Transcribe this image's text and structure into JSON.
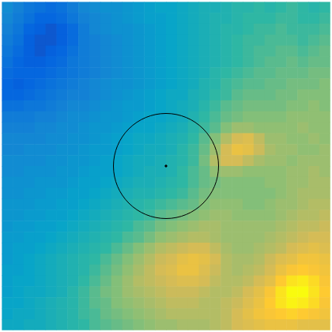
{
  "chart_data": {
    "type": "heatmap",
    "xlim": [
      0,
      30
    ],
    "ylim": [
      0,
      30
    ],
    "tick_labels": false,
    "color_range": [
      0,
      100
    ],
    "circle": {
      "center": [
        15,
        15
      ],
      "radius": 4.8
    },
    "cells": [
      [
        28,
        24,
        20,
        18,
        16,
        18,
        22,
        26,
        28,
        30,
        30,
        32,
        34,
        36,
        38,
        38,
        40,
        42,
        44,
        44,
        46,
        48,
        48,
        50,
        48,
        50,
        52,
        50,
        48,
        50
      ],
      [
        26,
        22,
        18,
        14,
        14,
        16,
        20,
        24,
        26,
        28,
        30,
        32,
        34,
        36,
        36,
        38,
        40,
        42,
        44,
        46,
        46,
        48,
        50,
        50,
        50,
        52,
        52,
        50,
        50,
        52
      ],
      [
        24,
        20,
        14,
        12,
        10,
        12,
        16,
        22,
        26,
        28,
        30,
        30,
        32,
        34,
        36,
        38,
        40,
        42,
        44,
        46,
        48,
        48,
        50,
        52,
        52,
        54,
        52,
        52,
        52,
        54
      ],
      [
        22,
        18,
        12,
        10,
        10,
        12,
        16,
        22,
        24,
        26,
        28,
        30,
        32,
        34,
        36,
        38,
        40,
        42,
        44,
        46,
        48,
        50,
        52,
        52,
        54,
        54,
        54,
        52,
        54,
        56
      ],
      [
        20,
        16,
        12,
        10,
        12,
        14,
        18,
        22,
        24,
        26,
        28,
        30,
        32,
        34,
        36,
        38,
        40,
        42,
        44,
        46,
        48,
        50,
        52,
        54,
        54,
        56,
        56,
        54,
        56,
        58
      ],
      [
        18,
        14,
        12,
        12,
        14,
        16,
        20,
        22,
        24,
        26,
        28,
        30,
        32,
        34,
        36,
        38,
        40,
        42,
        44,
        46,
        48,
        50,
        52,
        54,
        56,
        56,
        58,
        56,
        58,
        58
      ],
      [
        16,
        14,
        14,
        14,
        16,
        18,
        20,
        22,
        24,
        26,
        28,
        30,
        32,
        34,
        36,
        38,
        40,
        42,
        44,
        48,
        50,
        52,
        54,
        56,
        56,
        58,
        58,
        58,
        60,
        60
      ],
      [
        14,
        12,
        14,
        16,
        18,
        20,
        22,
        24,
        26,
        28,
        30,
        30,
        32,
        34,
        36,
        38,
        40,
        42,
        46,
        48,
        52,
        54,
        56,
        56,
        58,
        58,
        60,
        60,
        60,
        62
      ],
      [
        14,
        14,
        16,
        18,
        20,
        22,
        24,
        24,
        26,
        28,
        30,
        32,
        34,
        36,
        38,
        40,
        40,
        44,
        46,
        50,
        52,
        56,
        58,
        58,
        58,
        60,
        60,
        62,
        62,
        62
      ],
      [
        18,
        18,
        20,
        20,
        22,
        24,
        26,
        26,
        28,
        30,
        32,
        34,
        34,
        36,
        38,
        40,
        42,
        44,
        48,
        52,
        56,
        58,
        60,
        60,
        60,
        60,
        62,
        62,
        64,
        62
      ],
      [
        22,
        22,
        22,
        24,
        24,
        26,
        28,
        28,
        30,
        32,
        32,
        34,
        36,
        38,
        38,
        40,
        42,
        46,
        50,
        54,
        58,
        60,
        62,
        62,
        62,
        62,
        64,
        64,
        64,
        64
      ],
      [
        24,
        24,
        24,
        26,
        26,
        28,
        28,
        30,
        32,
        32,
        34,
        36,
        38,
        38,
        40,
        42,
        44,
        48,
        52,
        56,
        62,
        66,
        66,
        64,
        64,
        64,
        64,
        66,
        64,
        64
      ],
      [
        26,
        26,
        26,
        26,
        28,
        28,
        30,
        30,
        32,
        34,
        36,
        38,
        40,
        40,
        42,
        44,
        46,
        50,
        56,
        62,
        70,
        76,
        78,
        72,
        66,
        66,
        64,
        64,
        66,
        64
      ],
      [
        26,
        26,
        28,
        28,
        28,
        30,
        30,
        32,
        34,
        34,
        36,
        38,
        40,
        42,
        42,
        44,
        48,
        52,
        58,
        66,
        76,
        82,
        80,
        74,
        68,
        66,
        66,
        64,
        64,
        66
      ],
      [
        28,
        28,
        28,
        28,
        30,
        30,
        32,
        32,
        34,
        36,
        38,
        40,
        42,
        42,
        44,
        46,
        48,
        52,
        60,
        70,
        76,
        76,
        72,
        68,
        66,
        66,
        64,
        66,
        66,
        66
      ],
      [
        28,
        28,
        30,
        30,
        30,
        32,
        32,
        34,
        36,
        36,
        38,
        40,
        42,
        44,
        44,
        46,
        50,
        54,
        58,
        64,
        66,
        66,
        64,
        64,
        64,
        64,
        66,
        66,
        68,
        66
      ],
      [
        30,
        30,
        30,
        32,
        32,
        32,
        34,
        36,
        36,
        38,
        40,
        42,
        44,
        44,
        46,
        48,
        50,
        54,
        58,
        60,
        62,
        62,
        62,
        62,
        64,
        64,
        66,
        66,
        68,
        68
      ],
      [
        30,
        30,
        32,
        32,
        34,
        34,
        36,
        36,
        38,
        40,
        42,
        44,
        46,
        46,
        48,
        50,
        52,
        56,
        60,
        62,
        62,
        62,
        62,
        62,
        62,
        64,
        66,
        68,
        68,
        68
      ],
      [
        32,
        32,
        32,
        34,
        34,
        36,
        36,
        38,
        40,
        42,
        44,
        46,
        48,
        50,
        52,
        54,
        56,
        58,
        62,
        64,
        64,
        64,
        62,
        62,
        64,
        66,
        66,
        68,
        70,
        70
      ],
      [
        32,
        32,
        34,
        34,
        36,
        36,
        38,
        40,
        42,
        44,
        46,
        48,
        50,
        52,
        56,
        58,
        60,
        62,
        64,
        66,
        66,
        64,
        64,
        64,
        64,
        66,
        68,
        70,
        70,
        72
      ],
      [
        32,
        34,
        34,
        36,
        36,
        38,
        40,
        42,
        44,
        46,
        48,
        50,
        54,
        56,
        60,
        62,
        64,
        66,
        68,
        68,
        66,
        66,
        66,
        66,
        66,
        68,
        70,
        72,
        72,
        74
      ],
      [
        34,
        34,
        36,
        36,
        38,
        40,
        42,
        44,
        46,
        48,
        50,
        54,
        56,
        60,
        64,
        66,
        68,
        70,
        70,
        68,
        66,
        66,
        66,
        66,
        68,
        70,
        72,
        74,
        76,
        76
      ],
      [
        34,
        36,
        36,
        38,
        40,
        42,
        44,
        46,
        48,
        50,
        54,
        58,
        62,
        66,
        70,
        72,
        74,
        76,
        76,
        72,
        68,
        66,
        66,
        68,
        70,
        72,
        76,
        78,
        80,
        78
      ],
      [
        34,
        36,
        38,
        40,
        42,
        44,
        46,
        48,
        50,
        54,
        58,
        62,
        66,
        70,
        74,
        76,
        80,
        82,
        80,
        76,
        70,
        68,
        68,
        70,
        74,
        78,
        80,
        84,
        84,
        82
      ],
      [
        36,
        36,
        38,
        40,
        42,
        44,
        46,
        48,
        52,
        56,
        60,
        64,
        68,
        72,
        76,
        78,
        82,
        82,
        78,
        74,
        70,
        68,
        70,
        72,
        76,
        82,
        86,
        88,
        86,
        84
      ],
      [
        36,
        38,
        38,
        40,
        42,
        44,
        46,
        50,
        54,
        58,
        62,
        66,
        70,
        72,
        74,
        76,
        78,
        78,
        76,
        72,
        70,
        70,
        72,
        76,
        80,
        88,
        94,
        96,
        92,
        86
      ],
      [
        36,
        38,
        40,
        40,
        42,
        44,
        48,
        52,
        56,
        60,
        62,
        66,
        68,
        70,
        72,
        74,
        74,
        74,
        72,
        70,
        70,
        72,
        76,
        80,
        86,
        94,
        100,
        100,
        94,
        88
      ],
      [
        38,
        38,
        40,
        42,
        44,
        46,
        48,
        52,
        56,
        58,
        62,
        64,
        66,
        68,
        70,
        72,
        72,
        72,
        70,
        70,
        72,
        74,
        78,
        82,
        88,
        94,
        98,
        96,
        92,
        86
      ],
      [
        38,
        40,
        40,
        42,
        44,
        46,
        48,
        52,
        54,
        58,
        60,
        62,
        64,
        66,
        68,
        70,
        70,
        70,
        70,
        70,
        72,
        76,
        80,
        84,
        86,
        88,
        90,
        88,
        86,
        84
      ],
      [
        40,
        40,
        42,
        42,
        44,
        46,
        48,
        50,
        54,
        56,
        58,
        60,
        62,
        64,
        66,
        66,
        68,
        68,
        68,
        70,
        72,
        76,
        78,
        80,
        82,
        82,
        82,
        80,
        80,
        80
      ]
    ]
  }
}
